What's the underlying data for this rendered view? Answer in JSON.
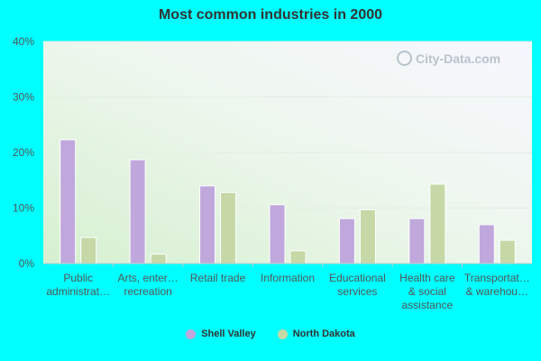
{
  "chart_data": {
    "type": "bar",
    "title": "Most common industries in 2000",
    "xlabel": "",
    "ylabel": "",
    "ylim": [
      0,
      40
    ],
    "yticks": [
      0,
      10,
      20,
      30,
      40
    ],
    "ytick_labels": [
      "0%",
      "10%",
      "20%",
      "30%",
      "40%"
    ],
    "categories": [
      [
        "Public",
        "administrat…"
      ],
      [
        "Arts, enter…",
        "recreation"
      ],
      [
        "Retail trade"
      ],
      [
        "Information"
      ],
      [
        "Educational",
        "services"
      ],
      [
        "Health care",
        "& social",
        "assistance"
      ],
      [
        "Transportat…",
        "& warehou…"
      ]
    ],
    "series": [
      {
        "name": "Shell Valley",
        "color": "#c0a8dc",
        "values": [
          22.3,
          18.7,
          14.0,
          10.6,
          8.1,
          8.1,
          7.0
        ]
      },
      {
        "name": "North Dakota",
        "color": "#c5d8a6",
        "values": [
          4.7,
          1.7,
          12.8,
          2.3,
          9.7,
          14.3,
          4.2
        ]
      }
    ],
    "grid": true,
    "legend_position": "bottom-center"
  },
  "watermark": "City-Data.com"
}
